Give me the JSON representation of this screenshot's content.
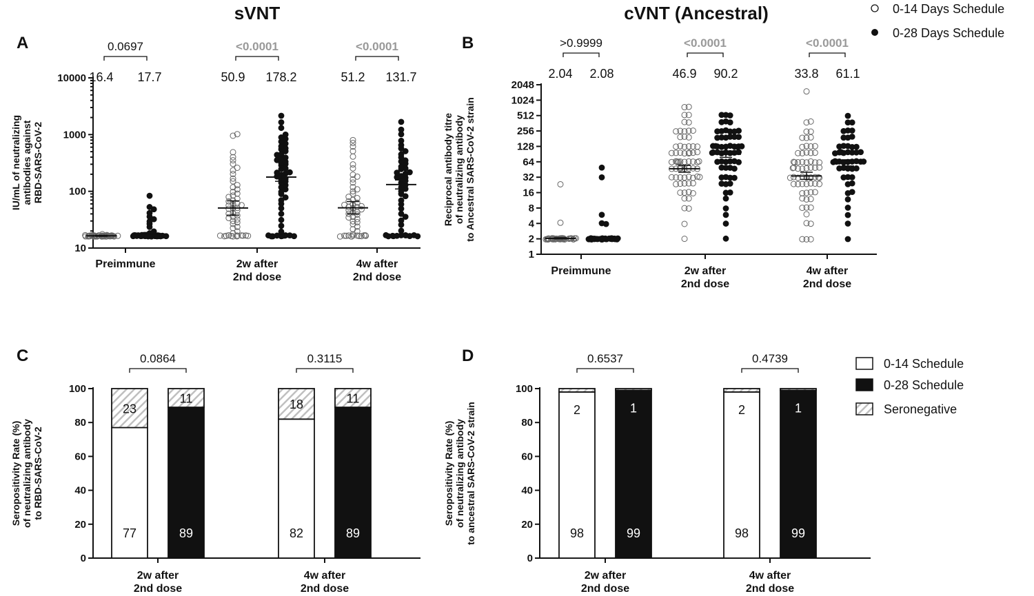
{
  "legend_top": {
    "open": "0-14 Days Schedule",
    "closed": "0-28 Days Schedule"
  },
  "legend_bottom": {
    "white": "0-14 Schedule",
    "black": "0-28 Schedule",
    "hatched": "Seronegative"
  },
  "colors": {
    "ink": "#111111",
    "significant_p": "#999999",
    "hatch": "#bfbfbf",
    "background": "#ffffff"
  },
  "chart_data": [
    {
      "panel": "A",
      "type": "scatter",
      "title": "sVNT",
      "ylabel_lines": [
        "IU/mL of neutralizing",
        "antibodies against",
        "RBD-SARS-CoV-2"
      ],
      "yscale": "log10",
      "ylim": [
        10,
        10000
      ],
      "yticks": [
        "10",
        "100",
        "1000",
        "10000"
      ],
      "categories": [
        [
          "Preimmune"
        ],
        [
          "2w after",
          "2nd dose"
        ],
        [
          "4w after",
          "2nd dose"
        ]
      ],
      "series": [
        {
          "name": "0-14 Days Schedule"
        },
        {
          "name": "0-28 Days Schedule"
        }
      ],
      "geometric_means": [
        [
          16.4,
          17.7
        ],
        [
          50.9,
          178.2
        ],
        [
          51.2,
          131.7
        ]
      ],
      "gm_labels": [
        [
          "16.4",
          "17.7"
        ],
        [
          "50.9",
          "178.2"
        ],
        [
          "51.2",
          "131.7"
        ]
      ],
      "ci": [
        [
          [
            16.1,
            16.8
          ],
          [
            16.8,
            18.8
          ]
        ],
        [
          [
            38,
            68
          ],
          [
            150,
            212
          ]
        ],
        [
          [
            40,
            66
          ],
          [
            110,
            158
          ]
        ]
      ],
      "p_values": [
        "0.0697",
        "<0.0001",
        "<0.0001"
      ],
      "p_significant": [
        false,
        true,
        true
      ],
      "points": [
        [
          [
            16.4,
            16.4,
            16.4,
            16.4,
            16.4,
            16.4,
            16.4,
            16.4,
            16.4,
            16.4,
            16.4,
            16.4,
            16.4,
            16.4,
            16.4,
            16.4,
            16.4,
            16.4,
            16.4,
            16.4,
            16.4,
            16.4,
            16.4,
            16.4,
            16.4,
            16.4,
            16.4,
            16.4,
            16.4,
            16.4,
            16.4,
            16.4,
            16.4,
            16.4,
            16.4,
            16.4,
            16.4,
            16.4,
            17,
            17,
            17.5
          ],
          [
            16.4,
            16.4,
            16.4,
            16.4,
            16.4,
            16.4,
            16.4,
            16.4,
            16.4,
            16.4,
            16.4,
            16.4,
            16.4,
            16.4,
            16.4,
            16.4,
            16.4,
            16.4,
            16.4,
            16.4,
            16.4,
            16.4,
            16.4,
            16.4,
            16.4,
            16.4,
            16.4,
            16.4,
            16.4,
            16.4,
            16.4,
            16.4,
            17,
            18,
            20,
            23,
            26,
            30,
            33,
            36,
            42,
            48,
            52,
            85
          ]
        ],
        [
          [
            16.4,
            16.4,
            16.4,
            16.4,
            16.4,
            16.4,
            16.4,
            16.4,
            16.4,
            16.4,
            16.4,
            16.4,
            18,
            20,
            22,
            24,
            26,
            28,
            30,
            32,
            34,
            36,
            38,
            40,
            42,
            45,
            48,
            50,
            52,
            55,
            58,
            60,
            62,
            66,
            70,
            75,
            80,
            85,
            90,
            100,
            110,
            120,
            130,
            150,
            170,
            200,
            230,
            260,
            300,
            350,
            400,
            500,
            950,
            1000
          ],
          [
            16.4,
            16.4,
            16.4,
            16.4,
            16.4,
            16.4,
            16.4,
            16.4,
            16.4,
            16.4,
            20,
            25,
            32,
            40,
            50,
            60,
            70,
            80,
            90,
            100,
            110,
            120,
            130,
            140,
            150,
            160,
            170,
            180,
            190,
            200,
            210,
            220,
            240,
            260,
            280,
            300,
            320,
            340,
            360,
            380,
            400,
            430,
            460,
            500,
            540,
            580,
            620,
            680,
            750,
            820,
            900,
            1000,
            1300,
            1600,
            2100
          ]
        ],
        [
          [
            16.4,
            16.4,
            16.4,
            16.4,
            16.4,
            16.4,
            16.4,
            16.4,
            16.4,
            16.4,
            16.4,
            16.4,
            18,
            20,
            22,
            24,
            26,
            28,
            30,
            32,
            34,
            36,
            38,
            40,
            42,
            44,
            46,
            48,
            50,
            52,
            54,
            56,
            58,
            60,
            64,
            68,
            72,
            76,
            80,
            90,
            100,
            110,
            120,
            140,
            160,
            180,
            200,
            250,
            300,
            400,
            500,
            600,
            700,
            800
          ],
          [
            16.4,
            16.4,
            16.4,
            16.4,
            16.4,
            16.4,
            16.4,
            16.4,
            16.4,
            16.4,
            16.4,
            20,
            25,
            30,
            35,
            40,
            50,
            60,
            70,
            80,
            90,
            100,
            110,
            120,
            130,
            140,
            150,
            160,
            170,
            180,
            190,
            200,
            210,
            220,
            240,
            260,
            280,
            300,
            330,
            360,
            400,
            450,
            500,
            560,
            650,
            800,
            1000,
            1200,
            1700
          ]
        ]
      ]
    },
    {
      "panel": "B",
      "type": "scatter",
      "title": "cVNT (Ancestral)",
      "ylabel_lines": [
        "Reciprocal antibody titre",
        "of neutralizing antibody",
        "to Ancestral SARS-CoV-2 strain"
      ],
      "yscale": "log2",
      "ylim": [
        1,
        2048
      ],
      "yticks": [
        "1",
        "2",
        "4",
        "8",
        "16",
        "32",
        "64",
        "128",
        "256",
        "512",
        "1024",
        "2048"
      ],
      "categories": [
        [
          "Preimmune"
        ],
        [
          "2w after",
          "2nd dose"
        ],
        [
          "4w after",
          "2nd dose"
        ]
      ],
      "series": [
        {
          "name": "0-14 Days Schedule"
        },
        {
          "name": "0-28 Days Schedule"
        }
      ],
      "geometric_means": [
        [
          2.04,
          2.08
        ],
        [
          46.9,
          90.2
        ],
        [
          33.8,
          61.1
        ]
      ],
      "gm_labels": [
        [
          "2.04",
          "2.08"
        ],
        [
          "46.9",
          "90.2"
        ],
        [
          "33.8",
          "61.1"
        ]
      ],
      "ci": [
        [
          [
            2,
            2.1
          ],
          [
            2,
            2.2
          ]
        ],
        [
          [
            40,
            55
          ],
          [
            78,
            104
          ]
        ],
        [
          [
            29,
            40
          ],
          [
            53,
            70
          ]
        ]
      ],
      "p_values": [
        ">0.9999",
        "<0.0001",
        "<0.0001"
      ],
      "p_significant": [
        false,
        true,
        true
      ],
      "points": [
        [
          [
            2,
            2,
            2,
            2,
            2,
            2,
            2,
            2,
            2,
            2,
            2,
            2,
            2,
            2,
            2,
            2,
            2,
            2,
            2,
            2,
            2,
            2,
            2,
            2,
            2,
            2,
            2,
            2,
            2,
            2,
            2,
            2,
            2,
            2,
            2,
            2,
            2,
            2,
            2,
            2,
            4,
            24
          ],
          [
            2,
            2,
            2,
            2,
            2,
            2,
            2,
            2,
            2,
            2,
            2,
            2,
            2,
            2,
            2,
            2,
            2,
            2,
            2,
            2,
            2,
            2,
            2,
            2,
            2,
            2,
            2,
            2,
            2,
            2,
            2,
            2,
            2,
            2,
            2,
            2,
            2,
            4,
            4,
            6,
            32,
            48
          ]
        ],
        [
          [
            2,
            4,
            8,
            8,
            12,
            12,
            16,
            16,
            16,
            16,
            24,
            24,
            24,
            24,
            24,
            32,
            32,
            32,
            32,
            32,
            32,
            32,
            32,
            48,
            48,
            48,
            48,
            48,
            48,
            48,
            48,
            48,
            64,
            64,
            64,
            64,
            64,
            64,
            64,
            64,
            64,
            64,
            64,
            96,
            96,
            96,
            96,
            96,
            96,
            96,
            96,
            128,
            128,
            128,
            128,
            128,
            128,
            192,
            192,
            192,
            256,
            256,
            256,
            256,
            256,
            384,
            384,
            512,
            512,
            768,
            768
          ],
          [
            2,
            4,
            6,
            8,
            12,
            16,
            16,
            24,
            24,
            24,
            32,
            32,
            32,
            32,
            48,
            48,
            48,
            48,
            64,
            64,
            64,
            64,
            64,
            64,
            96,
            96,
            96,
            96,
            96,
            96,
            96,
            96,
            128,
            128,
            128,
            128,
            128,
            128,
            128,
            128,
            128,
            128,
            192,
            192,
            192,
            192,
            192,
            192,
            256,
            256,
            256,
            256,
            256,
            256,
            384,
            384,
            384,
            512,
            512,
            512
          ]
        ],
        [
          [
            2,
            2,
            2,
            4,
            4,
            6,
            8,
            8,
            8,
            12,
            12,
            12,
            16,
            16,
            16,
            16,
            24,
            24,
            24,
            24,
            24,
            24,
            24,
            32,
            32,
            32,
            32,
            32,
            32,
            32,
            32,
            32,
            32,
            48,
            48,
            48,
            48,
            48,
            48,
            48,
            48,
            64,
            64,
            64,
            64,
            64,
            64,
            64,
            64,
            96,
            96,
            96,
            96,
            96,
            128,
            128,
            128,
            128,
            192,
            192,
            192,
            256,
            256,
            384,
            384,
            1536
          ],
          [
            2,
            4,
            6,
            8,
            12,
            16,
            16,
            24,
            24,
            32,
            32,
            32,
            48,
            48,
            48,
            48,
            48,
            64,
            64,
            64,
            64,
            64,
            64,
            64,
            64,
            64,
            64,
            96,
            96,
            96,
            96,
            96,
            96,
            96,
            96,
            128,
            128,
            128,
            128,
            128,
            192,
            192,
            192,
            256,
            256,
            256,
            384,
            384,
            512
          ]
        ]
      ]
    },
    {
      "panel": "C",
      "type": "bar",
      "stacked": true,
      "ylabel_lines": [
        "Seropositivity Rate (%)",
        "of neutralizing antibody",
        "to RBD-SARS-CoV-2"
      ],
      "ylim": [
        0,
        100
      ],
      "yticks": [
        "0",
        "20",
        "40",
        "60",
        "80",
        "100"
      ],
      "categories": [
        [
          "2w after",
          "2nd dose"
        ],
        [
          "4w after",
          "2nd dose"
        ]
      ],
      "bars": [
        [
          {
            "series": "0-14 Schedule",
            "positive": 77,
            "negative": 23,
            "positive_label": "77",
            "negative_label": "23"
          },
          {
            "series": "0-28 Schedule",
            "positive": 89,
            "negative": 11,
            "positive_label": "89",
            "negative_label": "11"
          }
        ],
        [
          {
            "series": "0-14 Schedule",
            "positive": 82,
            "negative": 18,
            "positive_label": "82",
            "negative_label": "18"
          },
          {
            "series": "0-28 Schedule",
            "positive": 89,
            "negative": 11,
            "positive_label": "89",
            "negative_label": "11"
          }
        ]
      ],
      "p_values": [
        "0.0864",
        "0.3115"
      ],
      "p_significant": [
        false,
        false
      ]
    },
    {
      "panel": "D",
      "type": "bar",
      "stacked": true,
      "ylabel_lines": [
        "Seropositivity Rate (%)",
        "of neutralizing antibody",
        "to ancestral SARS-CoV-2 strain"
      ],
      "ylim": [
        0,
        100
      ],
      "yticks": [
        "0",
        "20",
        "40",
        "60",
        "80",
        "100"
      ],
      "categories": [
        [
          "2w after",
          "2nd dose"
        ],
        [
          "4w after",
          "2nd dose"
        ]
      ],
      "bars": [
        [
          {
            "series": "0-14 Schedule",
            "positive": 98,
            "negative": 2,
            "positive_label": "98",
            "negative_label": "2"
          },
          {
            "series": "0-28 Schedule",
            "positive": 99,
            "negative": 1,
            "positive_label": "99",
            "negative_label": "1"
          }
        ],
        [
          {
            "series": "0-14 Schedule",
            "positive": 98,
            "negative": 2,
            "positive_label": "98",
            "negative_label": "2"
          },
          {
            "series": "0-28 Schedule",
            "positive": 99,
            "negative": 1,
            "positive_label": "99",
            "negative_label": "1"
          }
        ]
      ],
      "p_values": [
        "0.6537",
        "0.4739"
      ],
      "p_significant": [
        false,
        false
      ]
    }
  ]
}
